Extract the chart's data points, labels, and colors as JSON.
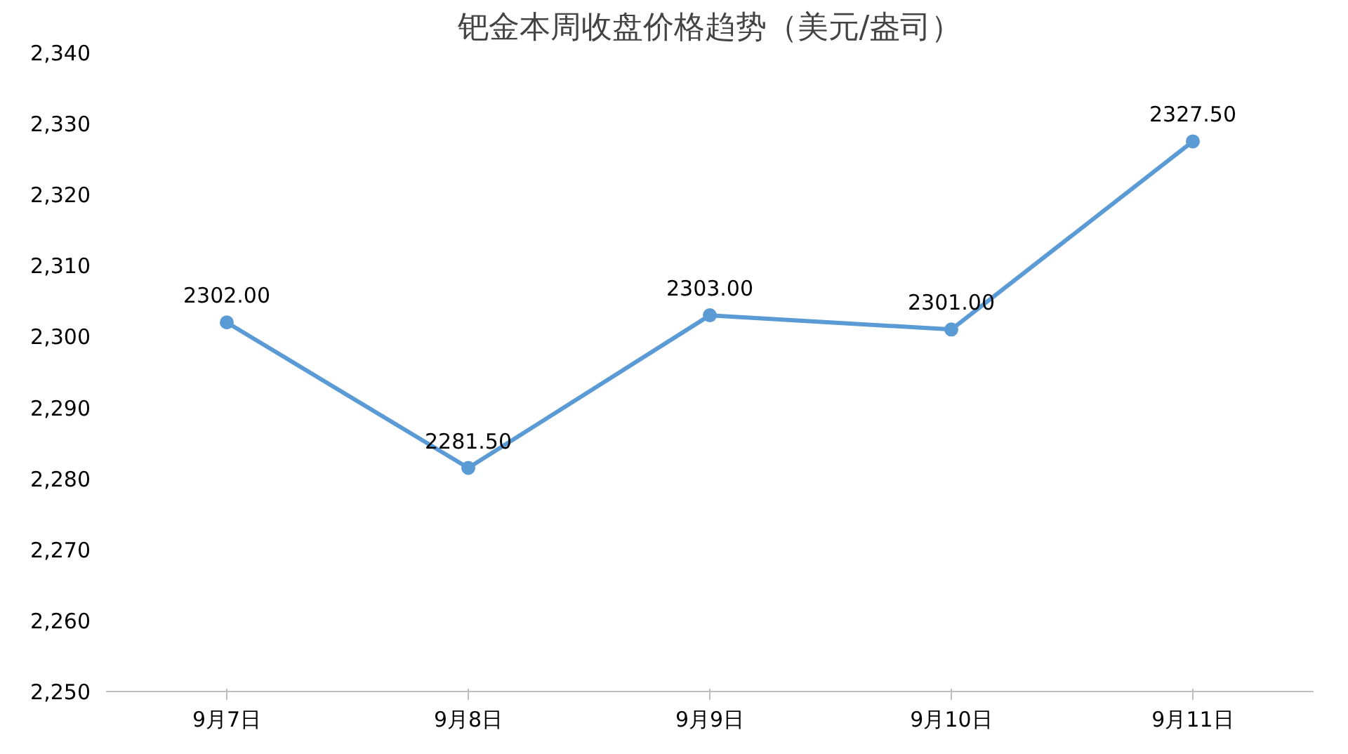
{
  "chart_data": {
    "type": "line",
    "title": "钯金本周收盘价格趋势（美元/盎司）",
    "categories": [
      "9月7日",
      "9月8日",
      "9月9日",
      "9月10日",
      "9月11日"
    ],
    "series": [
      {
        "color": "#5b9bd5",
        "values": [
          2302.0,
          2281.5,
          2303.0,
          2301.0,
          2327.5
        ],
        "value_labels": [
          "2302.00",
          "2281.50",
          "2303.00",
          "2301.00",
          "2327.50"
        ]
      }
    ],
    "ylim": [
      2250,
      2340
    ],
    "yticks": [
      {
        "value": 2250,
        "label": "2,250"
      },
      {
        "value": 2260,
        "label": "2,260"
      },
      {
        "value": 2270,
        "label": "2,270"
      },
      {
        "value": 2280,
        "label": "2,280"
      },
      {
        "value": 2290,
        "label": "2,290"
      },
      {
        "value": 2300,
        "label": "2,300"
      },
      {
        "value": 2310,
        "label": "2,310"
      },
      {
        "value": 2320,
        "label": "2,320"
      },
      {
        "value": 2330,
        "label": "2,330"
      },
      {
        "value": 2340,
        "label": "2,340"
      }
    ],
    "grid": false,
    "marker": "circle",
    "line_style": "solid"
  }
}
